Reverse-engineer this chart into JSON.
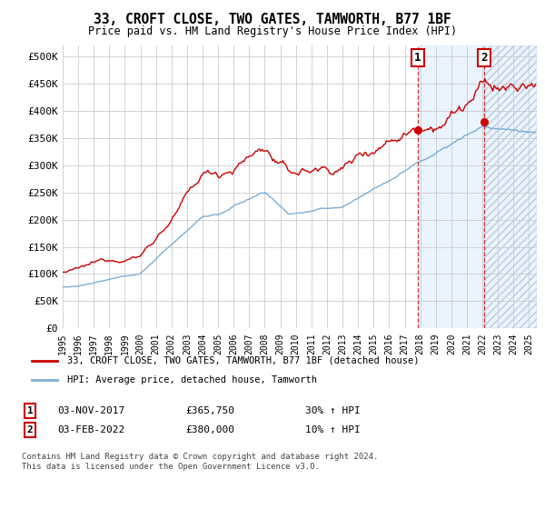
{
  "title": "33, CROFT CLOSE, TWO GATES, TAMWORTH, B77 1BF",
  "subtitle": "Price paid vs. HM Land Registry's House Price Index (HPI)",
  "legend_label_red": "33, CROFT CLOSE, TWO GATES, TAMWORTH, B77 1BF (detached house)",
  "legend_label_blue": "HPI: Average price, detached house, Tamworth",
  "annotation1_date": "03-NOV-2017",
  "annotation1_price": "£365,750",
  "annotation1_hpi": "30% ↑ HPI",
  "annotation1_year": 2017.84,
  "annotation1_value": 365750,
  "annotation2_date": "03-FEB-2022",
  "annotation2_price": "£380,000",
  "annotation2_hpi": "10% ↑ HPI",
  "annotation2_year": 2022.09,
  "annotation2_value": 380000,
  "footer": "Contains HM Land Registry data © Crown copyright and database right 2024.\nThis data is licensed under the Open Government Licence v3.0.",
  "ylim": [
    0,
    520000
  ],
  "xlim_start": 1995.0,
  "xlim_end": 2025.5,
  "shaded_start": 2017.84,
  "bg_color": "#ffffff",
  "grid_color": "#cccccc",
  "red_color": "#cc0000",
  "blue_color": "#7aaed6",
  "shade_color": "#ddeeff"
}
